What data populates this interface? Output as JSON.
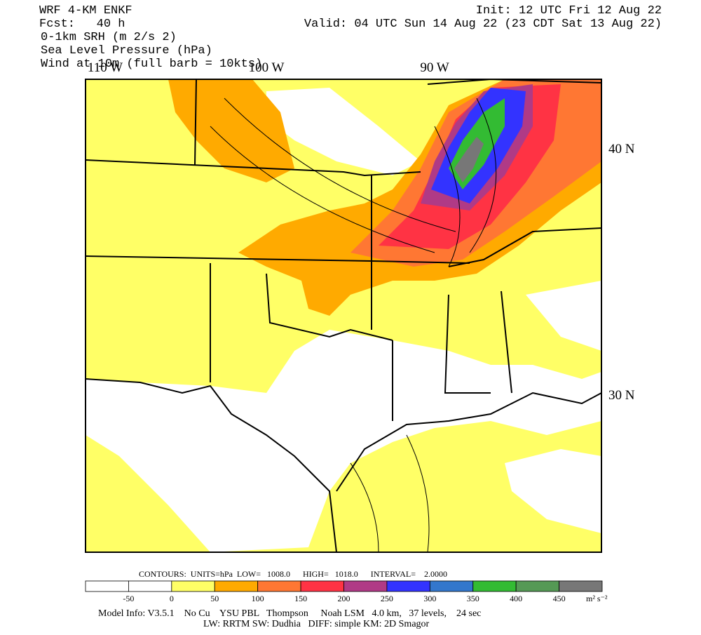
{
  "header": {
    "model": "WRF 4-KM ENKF",
    "forecast": "Fcst:   40 h",
    "fields": [
      "0-1km SRH (m 2/s 2)",
      "Sea Level Pressure (hPa)",
      "Wind at 10m (full barb = 10kts)"
    ],
    "init": "Init: 12 UTC Fri 12 Aug 22",
    "valid": "Valid: 04 UTC Sun 14 Aug 22 (23 CDT Sat 13 Aug 22)"
  },
  "map": {
    "longitude_labels": [
      "110 W",
      "100 W",
      "90 W"
    ],
    "latitude_labels": [
      "40 N",
      "30 N"
    ]
  },
  "contours": "CONTOURS:  UNITS=hPa  LOW=   1008.0      HIGH=   1018.0      INTERVAL=    2.0000",
  "colorbar": {
    "colors": [
      "#ffffff",
      "#ffffff",
      "#ffff66",
      "#ffaa00",
      "#ff7733",
      "#ff3344",
      "#b03a86",
      "#3333ff",
      "#3377cc",
      "#33bb33",
      "#559955",
      "#777777"
    ],
    "labels": [
      "-50",
      "0",
      "50",
      "100",
      "150",
      "200",
      "250",
      "300",
      "350",
      "400",
      "450"
    ],
    "units": "m² s⁻²"
  },
  "footer": [
    "Model Info: V3.5.1    No Cu    YSU PBL   Thompson     Noah LSM   4.0 km,   37 levels,    24 sec",
    "LW: RRTM SW: Dudhia   DIFF: simple KM: 2D Smagor"
  ]
}
